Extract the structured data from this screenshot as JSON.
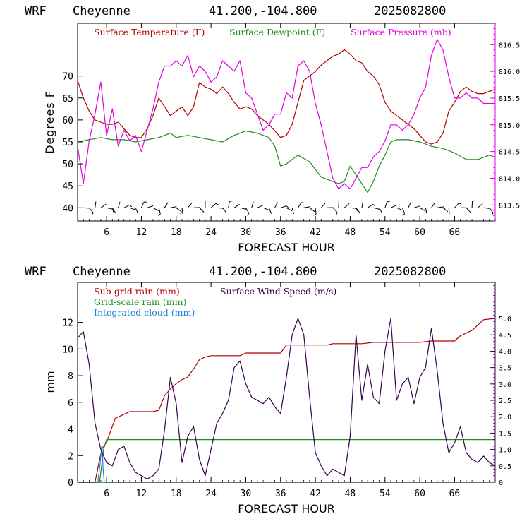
{
  "colors": {
    "temperature": "#b00000",
    "dewpoint": "#228b22",
    "pressure": "#e000e0",
    "subgrid_rain": "#b00000",
    "grid_rain": "#228b22",
    "cloud": "#1e7fe0",
    "wind_speed": "#3a0050",
    "axis": "#000000",
    "frame_right_top": "#e000e0",
    "frame_right_bottom": "#3a0050"
  },
  "chart_data": [
    {
      "type": "line",
      "header": {
        "model": "WRF",
        "station": "Cheyenne",
        "coords": "41.200,-104.800",
        "run": "2025082800"
      },
      "xlabel": "FORECAST HOUR",
      "ylabel": "Degrees F",
      "xlim": [
        1,
        73
      ],
      "ylim": [
        37,
        82
      ],
      "xticks": [
        "6",
        "12",
        "18",
        "24",
        "30",
        "36",
        "42",
        "48",
        "54",
        "60",
        "66"
      ],
      "xtick_values": [
        6,
        12,
        18,
        24,
        30,
        36,
        42,
        48,
        54,
        60,
        66
      ],
      "yticks": [
        "40",
        "45",
        "50",
        "55",
        "60",
        "65",
        "70"
      ],
      "ytick_values": [
        40,
        45,
        50,
        55,
        60,
        65,
        70
      ],
      "y2label": "",
      "y2lim": [
        813.2,
        816.9
      ],
      "y2ticks": [
        "813.5",
        "814.0",
        "814.5",
        "815.0",
        "815.5",
        "816.0",
        "816.5"
      ],
      "y2tick_values": [
        813.5,
        814.0,
        814.5,
        815.0,
        815.5,
        816.0,
        816.5
      ],
      "legend": [
        "Surface Temperature (F)",
        "Surface Dewpoint (F)",
        "Surface Pressure (mb)"
      ],
      "legend_position": "top",
      "wind_barbs": "row of wind barbs along the bottom at ~40 F",
      "series": [
        {
          "name": "Surface Temperature (F)",
          "axis": "left",
          "x": [
            1,
            2,
            3,
            4,
            5,
            6,
            7,
            8,
            9,
            10,
            11,
            12,
            13,
            14,
            15,
            16,
            17,
            18,
            19,
            20,
            21,
            22,
            23,
            24,
            25,
            26,
            27,
            28,
            29,
            30,
            31,
            32,
            33,
            34,
            35,
            36,
            37,
            38,
            39,
            40,
            41,
            42,
            43,
            44,
            45,
            46,
            47,
            48,
            49,
            50,
            51,
            52,
            53,
            54,
            55,
            56,
            57,
            58,
            59,
            60,
            61,
            62,
            63,
            64,
            65,
            66,
            67,
            68,
            69,
            70,
            71,
            72,
            73
          ],
          "y": [
            69,
            65,
            62,
            60,
            59.5,
            59,
            59,
            59.5,
            58,
            56.5,
            56,
            56,
            58,
            61,
            65,
            63,
            61,
            62,
            63,
            61,
            63,
            68.5,
            67.5,
            67,
            66,
            67.5,
            66,
            64,
            62.5,
            63,
            62.5,
            61,
            60,
            59,
            57.5,
            56,
            56.5,
            59,
            64,
            69,
            70,
            71,
            72.5,
            73.5,
            74.5,
            75,
            76,
            75,
            73.5,
            73,
            71,
            70,
            68,
            64,
            62,
            61,
            60,
            59,
            58,
            56.5,
            55,
            54.5,
            55,
            57,
            62,
            64,
            66.5,
            67.5,
            66.5,
            66,
            66,
            66.5,
            67
          ]
        },
        {
          "name": "Surface Dewpoint (F)",
          "axis": "left",
          "x": [
            1,
            3,
            5,
            7,
            9,
            11,
            13,
            15,
            17,
            18,
            20,
            22,
            24,
            26,
            28,
            30,
            32,
            34,
            35,
            36,
            37,
            39,
            41,
            43,
            45,
            46,
            47,
            48,
            49,
            50,
            51,
            52,
            53,
            54,
            55,
            56,
            58,
            60,
            62,
            64,
            66,
            68,
            70,
            72,
            73
          ],
          "y": [
            55,
            55.5,
            56,
            55.5,
            55.5,
            55,
            55.5,
            56,
            57,
            56,
            56.5,
            56,
            55.5,
            55,
            56.5,
            57.5,
            57,
            56,
            54,
            49.5,
            50,
            52,
            50.5,
            47,
            46,
            45.5,
            46,
            49.5,
            47.5,
            45.5,
            43.5,
            46,
            49.5,
            52,
            55,
            55.5,
            55.5,
            55,
            54,
            53.5,
            52.5,
            51,
            51,
            52,
            51.5
          ]
        },
        {
          "name": "Surface Pressure (mb)",
          "axis": "right",
          "x": [
            1,
            2,
            3,
            4,
            5,
            6,
            7,
            8,
            9,
            10,
            11,
            12,
            13,
            14,
            15,
            16,
            17,
            18,
            19,
            20,
            21,
            22,
            23,
            24,
            25,
            26,
            27,
            28,
            29,
            30,
            31,
            32,
            33,
            34,
            35,
            36,
            37,
            38,
            39,
            40,
            41,
            42,
            43,
            44,
            45,
            46,
            47,
            48,
            49,
            50,
            51,
            52,
            53,
            54,
            55,
            56,
            57,
            58,
            59,
            60,
            61,
            62,
            63,
            64,
            65,
            66,
            67,
            68,
            69,
            70,
            71,
            72,
            73
          ],
          "y": [
            814.6,
            813.9,
            814.7,
            815.2,
            815.8,
            814.8,
            815.3,
            814.6,
            814.9,
            814.7,
            814.8,
            814.5,
            814.9,
            815.3,
            815.8,
            816.1,
            816.1,
            816.2,
            816.1,
            816.3,
            815.9,
            816.1,
            816.0,
            815.8,
            815.9,
            816.2,
            816.1,
            816.0,
            816.2,
            815.6,
            815.5,
            815.2,
            814.9,
            815.0,
            815.2,
            815.2,
            815.6,
            815.5,
            816.1,
            816.2,
            816.0,
            815.4,
            815.0,
            814.5,
            814.0,
            813.8,
            813.9,
            813.8,
            814.0,
            814.2,
            814.2,
            814.4,
            814.5,
            814.7,
            815.0,
            815.0,
            814.9,
            815.0,
            815.2,
            815.5,
            815.7,
            816.3,
            816.6,
            816.4,
            815.9,
            815.5,
            815.5,
            815.6,
            815.5,
            815.5,
            815.4,
            815.4,
            815.4
          ]
        }
      ]
    },
    {
      "type": "line",
      "header": {
        "model": "WRF",
        "station": "Cheyenne",
        "coords": "41.200,-104.800",
        "run": "2025082800"
      },
      "xlabel": "FORECAST HOUR",
      "ylabel": "mm",
      "xlim": [
        1,
        73
      ],
      "ylim": [
        0,
        15
      ],
      "xticks": [
        "6",
        "12",
        "18",
        "24",
        "30",
        "36",
        "42",
        "48",
        "54",
        "60",
        "66"
      ],
      "xtick_values": [
        6,
        12,
        18,
        24,
        30,
        36,
        42,
        48,
        54,
        60,
        66
      ],
      "yticks": [
        "0",
        "2",
        "4",
        "6",
        "8",
        "10",
        "12"
      ],
      "ytick_values": [
        0,
        2,
        4,
        6,
        8,
        10,
        12
      ],
      "y2label": "",
      "y2lim": [
        0,
        6.1
      ],
      "y2ticks": [
        "0",
        "0.5",
        "1.0",
        "1.5",
        "2.0",
        "2.5",
        "3.0",
        "3.5",
        "4.0",
        "4.5",
        "5.0"
      ],
      "y2tick_values": [
        0,
        0.5,
        1.0,
        1.5,
        2.0,
        2.5,
        3.0,
        3.5,
        4.0,
        4.5,
        5.0
      ],
      "legend": [
        "Sub-grid rain (mm)",
        "Grid-scale rain (mm)",
        "Integrated cloud (mm)",
        "Surface Wind Speed (m/s)"
      ],
      "legend_position": "top-left",
      "series": [
        {
          "name": "Sub-grid rain (mm)",
          "axis": "left",
          "x": [
            1,
            4,
            4.7,
            5.2,
            6,
            7,
            7.5,
            9,
            10,
            14,
            15,
            16,
            17,
            18,
            19,
            20,
            21,
            22,
            23,
            24,
            29,
            30,
            36,
            37,
            44,
            45,
            50,
            52,
            60,
            62,
            66,
            67,
            69,
            70,
            71,
            73
          ],
          "y": [
            0,
            0,
            1.5,
            2.5,
            3,
            4.2,
            4.8,
            5.1,
            5.3,
            5.3,
            5.4,
            6.5,
            7.0,
            7.4,
            7.7,
            7.9,
            8.5,
            9.2,
            9.4,
            9.5,
            9.5,
            9.7,
            9.7,
            10.3,
            10.3,
            10.4,
            10.4,
            10.5,
            10.5,
            10.6,
            10.6,
            11.0,
            11.4,
            11.8,
            12.2,
            12.3
          ]
        },
        {
          "name": "Grid-scale rain (mm)",
          "axis": "left",
          "x": [
            1,
            4.8,
            5.5,
            6,
            73
          ],
          "y": [
            0,
            0,
            2.5,
            3.2,
            3.2
          ]
        },
        {
          "name": "Integrated cloud (mm)",
          "axis": "left",
          "x": [
            1,
            4.5,
            4.9,
            5.2,
            5.4,
            5.6,
            73
          ],
          "y": [
            0,
            0,
            1.5,
            2.8,
            1.0,
            0,
            0
          ]
        },
        {
          "name": "Surface Wind Speed (m/s)",
          "axis": "right",
          "x": [
            1,
            2,
            3,
            4,
            5,
            6,
            7,
            8,
            9,
            10,
            11,
            12,
            13,
            14,
            15,
            16,
            17,
            18,
            19,
            20,
            21,
            22,
            23,
            24,
            25,
            26,
            27,
            28,
            29,
            30,
            31,
            32,
            33,
            34,
            35,
            36,
            37,
            38,
            39,
            40,
            41,
            42,
            43,
            44,
            45,
            46,
            47,
            48,
            49,
            50,
            51,
            52,
            53,
            54,
            55,
            56,
            57,
            58,
            59,
            60,
            61,
            62,
            63,
            64,
            65,
            66,
            67,
            68,
            69,
            70,
            71,
            72,
            73
          ],
          "y": [
            4.4,
            4.6,
            3.6,
            1.8,
            1.0,
            0.6,
            0.5,
            1.0,
            1.1,
            0.6,
            0.3,
            0.2,
            0.1,
            0.2,
            0.4,
            1.6,
            3.2,
            2.4,
            0.6,
            1.4,
            1.7,
            0.7,
            0.2,
            1.0,
            1.8,
            2.1,
            2.5,
            3.5,
            3.7,
            3.0,
            2.6,
            2.5,
            2.4,
            2.6,
            2.3,
            2.1,
            3.2,
            4.5,
            5.0,
            4.5,
            2.6,
            0.9,
            0.5,
            0.2,
            0.4,
            0.3,
            0.2,
            1.4,
            4.5,
            2.5,
            3.6,
            2.6,
            2.4,
            4.0,
            5.0,
            2.5,
            3.0,
            3.2,
            2.4,
            3.2,
            3.5,
            4.7,
            3.4,
            1.8,
            0.9,
            1.2,
            1.7,
            0.9,
            0.7,
            0.6,
            0.8,
            0.6,
            0.5
          ]
        }
      ]
    }
  ]
}
